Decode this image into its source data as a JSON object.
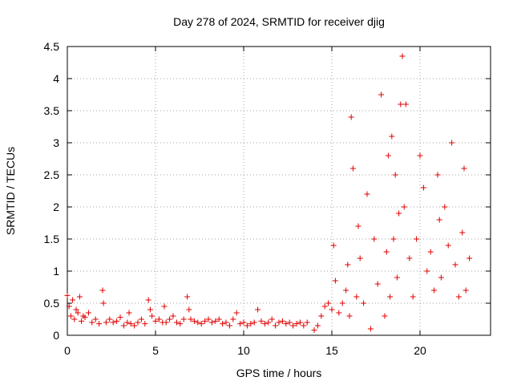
{
  "chart_data": {
    "type": "scatter",
    "title": "Day 278 of 2024, SRMTID for receiver djig",
    "xlabel": "GPS time / hours",
    "ylabel": "SRMTID / TECUs",
    "xlim": [
      0,
      24
    ],
    "ylim": [
      0,
      4.5
    ],
    "x_ticks": [
      0,
      5,
      10,
      15,
      20
    ],
    "x_tick_labels": [
      "0",
      "5",
      "10",
      "15",
      "20"
    ],
    "y_ticks": [
      0,
      0.5,
      1,
      1.5,
      2,
      2.5,
      3,
      3.5,
      4,
      4.5
    ],
    "y_tick_labels": [
      "0",
      "0.5",
      "1",
      "1.5",
      "2",
      "2.5",
      "3",
      "3.5",
      "4",
      "4.5"
    ],
    "grid": true,
    "marker": "plus",
    "color": "#e00000",
    "series": [
      {
        "name": "SRMTID",
        "x": [
          0.0,
          0.1,
          0.2,
          0.3,
          0.4,
          0.5,
          0.6,
          0.7,
          0.8,
          0.9,
          1.0,
          1.2,
          1.4,
          1.6,
          1.8,
          2.0,
          2.05,
          2.2,
          2.4,
          2.6,
          2.8,
          3.0,
          3.2,
          3.4,
          3.5,
          3.6,
          3.8,
          4.0,
          4.2,
          4.4,
          4.6,
          4.7,
          4.8,
          5.0,
          5.2,
          5.4,
          5.5,
          5.6,
          5.8,
          6.0,
          6.2,
          6.4,
          6.6,
          6.8,
          6.9,
          7.0,
          7.2,
          7.4,
          7.6,
          7.8,
          8.0,
          8.2,
          8.4,
          8.6,
          8.8,
          9.0,
          9.2,
          9.4,
          9.6,
          9.8,
          10.0,
          10.2,
          10.4,
          10.6,
          10.8,
          11.0,
          11.2,
          11.4,
          11.6,
          11.8,
          12.0,
          12.2,
          12.4,
          12.6,
          12.8,
          13.0,
          13.2,
          13.4,
          13.6,
          14.0,
          14.2,
          14.4,
          14.6,
          14.8,
          15.0,
          15.1,
          15.2,
          15.4,
          15.6,
          15.8,
          15.9,
          16.0,
          16.1,
          16.2,
          16.4,
          16.5,
          16.6,
          16.8,
          17.0,
          17.2,
          17.4,
          17.6,
          17.8,
          18.0,
          18.1,
          18.2,
          18.3,
          18.4,
          18.5,
          18.6,
          18.7,
          18.8,
          18.9,
          19.0,
          19.1,
          19.2,
          19.4,
          19.6,
          19.8,
          20.0,
          20.2,
          20.4,
          20.6,
          20.8,
          21.0,
          21.1,
          21.2,
          21.4,
          21.6,
          21.8,
          22.0,
          22.2,
          22.4,
          22.5,
          22.6,
          22.8
        ],
        "y": [
          0.62,
          0.45,
          0.3,
          0.55,
          0.25,
          0.4,
          0.35,
          0.6,
          0.22,
          0.3,
          0.28,
          0.35,
          0.2,
          0.25,
          0.18,
          0.7,
          0.5,
          0.2,
          0.25,
          0.2,
          0.22,
          0.28,
          0.15,
          0.2,
          0.35,
          0.18,
          0.15,
          0.2,
          0.25,
          0.18,
          0.55,
          0.4,
          0.3,
          0.22,
          0.25,
          0.2,
          0.45,
          0.2,
          0.25,
          0.3,
          0.2,
          0.18,
          0.25,
          0.6,
          0.4,
          0.25,
          0.22,
          0.2,
          0.18,
          0.22,
          0.25,
          0.2,
          0.22,
          0.25,
          0.18,
          0.2,
          0.15,
          0.25,
          0.35,
          0.18,
          0.2,
          0.15,
          0.18,
          0.2,
          0.4,
          0.22,
          0.18,
          0.2,
          0.25,
          0.15,
          0.2,
          0.22,
          0.18,
          0.2,
          0.15,
          0.18,
          0.2,
          0.15,
          0.2,
          0.08,
          0.15,
          0.3,
          0.45,
          0.5,
          0.4,
          1.4,
          0.85,
          0.35,
          0.5,
          0.7,
          1.1,
          0.3,
          3.4,
          2.6,
          0.6,
          1.7,
          1.2,
          0.5,
          2.2,
          0.1,
          1.5,
          0.8,
          3.75,
          0.3,
          1.3,
          2.8,
          0.6,
          3.1,
          1.5,
          2.5,
          0.9,
          1.9,
          3.6,
          4.35,
          2.0,
          3.6,
          1.2,
          0.6,
          1.5,
          2.8,
          2.3,
          1.0,
          1.3,
          0.7,
          2.5,
          1.8,
          0.9,
          2.0,
          1.4,
          3.0,
          1.1,
          0.6,
          1.6,
          2.6,
          0.7,
          1.2
        ]
      }
    ]
  }
}
